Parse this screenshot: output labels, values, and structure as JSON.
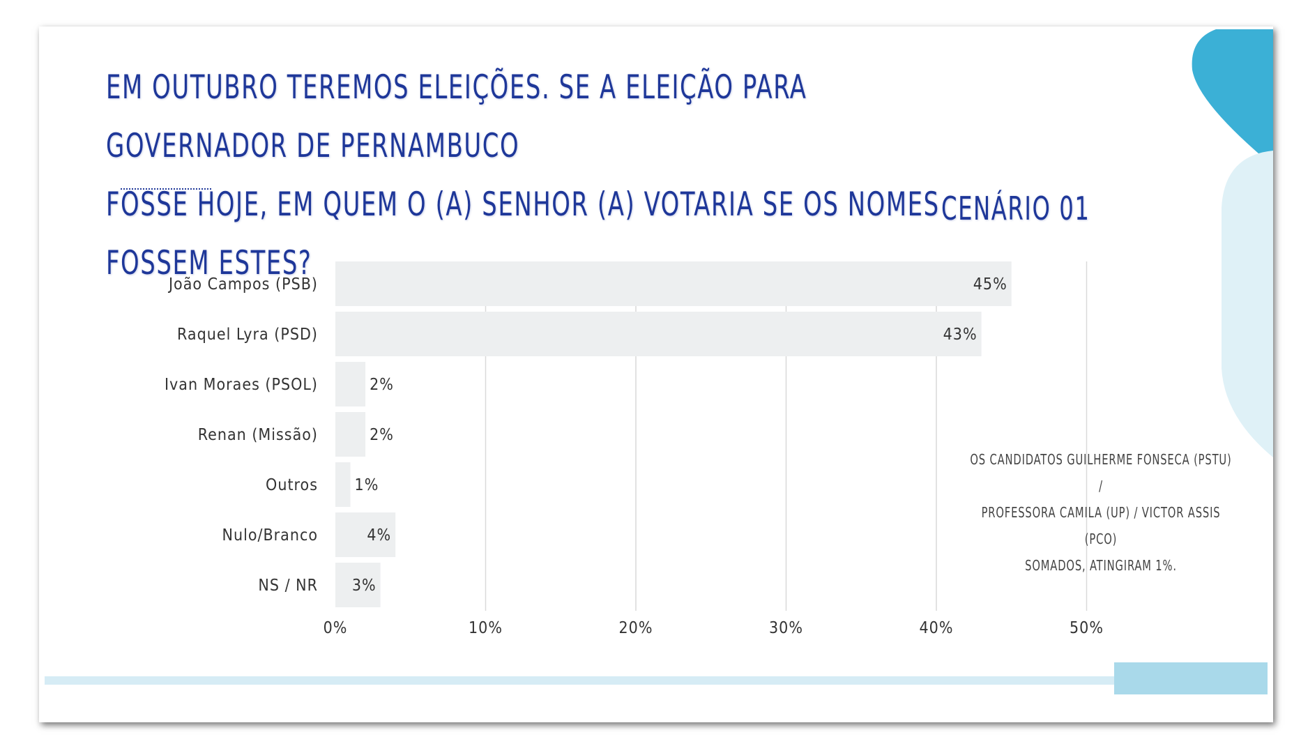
{
  "title_line1": "Em outubro teremos eleições. Se a eleição para governador de Pernambuco",
  "title_line2": "fosse hoje, em quem o (a) senhor (a) votaria se os nomes fossem estes?",
  "scenario": "CENÁRIO 01",
  "note_line1": "Os candidatos  Guilherme Fonseca (PSTU) /",
  "note_line2": "Professora Camila (UP) / Victor Assis (PCO)",
  "note_line3": "somados, atingiram 1%.",
  "colors": {
    "title": "#1e3799",
    "bar": "#edeff0",
    "grid": "#d9d9d9",
    "accent": "#3bb0d6",
    "accent_light": "#dff1f7"
  },
  "chart_data": {
    "type": "bar",
    "orientation": "horizontal",
    "categories": [
      "João Campos (PSB)",
      "Raquel Lyra (PSD)",
      "Ivan Moraes (PSOL)",
      "Renan (Missão)",
      "Outros",
      "Nulo/Branco",
      "NS / NR"
    ],
    "values": [
      45,
      43,
      2,
      2,
      1,
      4,
      3
    ],
    "value_labels": [
      "45%",
      "43%",
      "2%",
      "2%",
      "1%",
      "4%",
      "3%"
    ],
    "xticks": [
      0,
      10,
      20,
      30,
      40,
      50
    ],
    "xtick_labels": [
      "0%",
      "10%",
      "20%",
      "30%",
      "40%",
      "50%"
    ],
    "xlim": [
      0,
      50
    ],
    "grid": true
  }
}
